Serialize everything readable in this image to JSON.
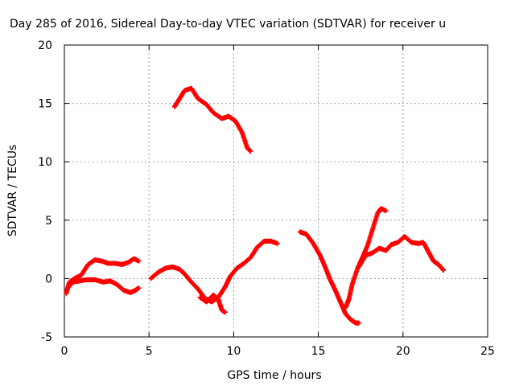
{
  "chart_data": {
    "type": "scatter",
    "title": "Day 285 of 2016, Sidereal Day-to-day VTEC variation (SDTVAR) for receiver u",
    "xlabel": "GPS time / hours",
    "ylabel": "SDTVAR / TECUs",
    "xlim": [
      0,
      25
    ],
    "ylim": [
      -5,
      20
    ],
    "x_ticks": [
      "0",
      "5",
      "10",
      "15",
      "20",
      "25"
    ],
    "y_ticks": [
      "-5",
      "0",
      "5",
      "10",
      "15",
      "20"
    ],
    "grid": true,
    "marker": "plus",
    "colors": {
      "series": "#ff0000",
      "grid": "#a0a0a0",
      "axes": "#000000"
    },
    "series": [
      {
        "points": [
          [
            0.1,
            -1.3
          ],
          [
            0.3,
            -0.3
          ],
          [
            0.6,
            0.0
          ],
          [
            1.0,
            0.3
          ],
          [
            1.4,
            1.2
          ],
          [
            1.8,
            1.6
          ],
          [
            2.2,
            1.5
          ],
          [
            2.6,
            1.3
          ],
          [
            3.0,
            1.3
          ],
          [
            3.4,
            1.2
          ],
          [
            3.8,
            1.4
          ],
          [
            4.1,
            1.7
          ],
          [
            4.4,
            1.5
          ]
        ]
      },
      {
        "points": [
          [
            0.2,
            -0.8
          ],
          [
            0.5,
            -0.3
          ],
          [
            0.9,
            -0.2
          ],
          [
            1.3,
            -0.1
          ],
          [
            1.8,
            -0.1
          ],
          [
            2.3,
            -0.3
          ],
          [
            2.7,
            -0.2
          ],
          [
            3.1,
            -0.5
          ],
          [
            3.5,
            -1.0
          ],
          [
            3.9,
            -1.2
          ],
          [
            4.2,
            -1.0
          ],
          [
            4.4,
            -0.8
          ]
        ]
      },
      {
        "points": [
          [
            6.5,
            14.7
          ],
          [
            6.8,
            15.4
          ],
          [
            7.1,
            16.1
          ],
          [
            7.5,
            16.3
          ],
          [
            7.9,
            15.4
          ],
          [
            8.4,
            14.9
          ],
          [
            8.8,
            14.2
          ],
          [
            9.3,
            13.7
          ],
          [
            9.7,
            13.9
          ],
          [
            10.1,
            13.5
          ],
          [
            10.5,
            12.5
          ],
          [
            10.8,
            11.2
          ],
          [
            11.0,
            10.9
          ]
        ]
      },
      {
        "points": [
          [
            5.1,
            0.0
          ],
          [
            5.6,
            0.6
          ],
          [
            6.0,
            0.9
          ],
          [
            6.4,
            1.0
          ],
          [
            6.8,
            0.8
          ],
          [
            7.1,
            0.4
          ],
          [
            7.5,
            -0.3
          ],
          [
            7.9,
            -0.9
          ],
          [
            8.3,
            -1.7
          ],
          [
            8.7,
            -2.0
          ],
          [
            9.1,
            -1.6
          ],
          [
            9.5,
            -0.7
          ],
          [
            9.8,
            0.2
          ],
          [
            10.2,
            0.9
          ],
          [
            10.6,
            1.3
          ],
          [
            11.0,
            1.8
          ],
          [
            11.4,
            2.7
          ],
          [
            11.8,
            3.2
          ],
          [
            12.2,
            3.2
          ],
          [
            12.6,
            3.0
          ]
        ]
      },
      {
        "points": [
          [
            8.0,
            -1.6
          ],
          [
            8.4,
            -2.0
          ],
          [
            8.8,
            -1.4
          ],
          [
            9.1,
            -1.8
          ],
          [
            9.3,
            -2.7
          ],
          [
            9.5,
            -2.9
          ]
        ]
      },
      {
        "points": [
          [
            13.9,
            4.0
          ],
          [
            14.3,
            3.8
          ],
          [
            14.7,
            3.0
          ],
          [
            15.1,
            2.0
          ],
          [
            15.4,
            1.0
          ],
          [
            15.7,
            -0.1
          ],
          [
            16.0,
            -1.0
          ],
          [
            16.3,
            -2.0
          ],
          [
            16.6,
            -3.0
          ],
          [
            16.9,
            -3.5
          ],
          [
            17.2,
            -3.8
          ],
          [
            17.4,
            -3.8
          ]
        ]
      },
      {
        "points": [
          [
            16.6,
            -2.5
          ],
          [
            16.8,
            -1.8
          ],
          [
            17.0,
            -0.5
          ],
          [
            17.3,
            0.8
          ],
          [
            17.6,
            1.8
          ],
          [
            17.9,
            2.8
          ],
          [
            18.2,
            4.2
          ],
          [
            18.5,
            5.6
          ],
          [
            18.7,
            6.0
          ],
          [
            19.0,
            5.8
          ]
        ]
      },
      {
        "points": [
          [
            17.4,
            1.0
          ],
          [
            17.8,
            2.0
          ],
          [
            18.2,
            2.2
          ],
          [
            18.6,
            2.6
          ],
          [
            19.0,
            2.4
          ],
          [
            19.3,
            2.9
          ],
          [
            19.7,
            3.1
          ],
          [
            20.1,
            3.6
          ],
          [
            20.5,
            3.1
          ],
          [
            20.9,
            3.0
          ],
          [
            21.2,
            3.1
          ],
          [
            21.5,
            2.3
          ],
          [
            21.8,
            1.5
          ],
          [
            22.1,
            1.2
          ],
          [
            22.4,
            0.7
          ]
        ]
      }
    ]
  }
}
